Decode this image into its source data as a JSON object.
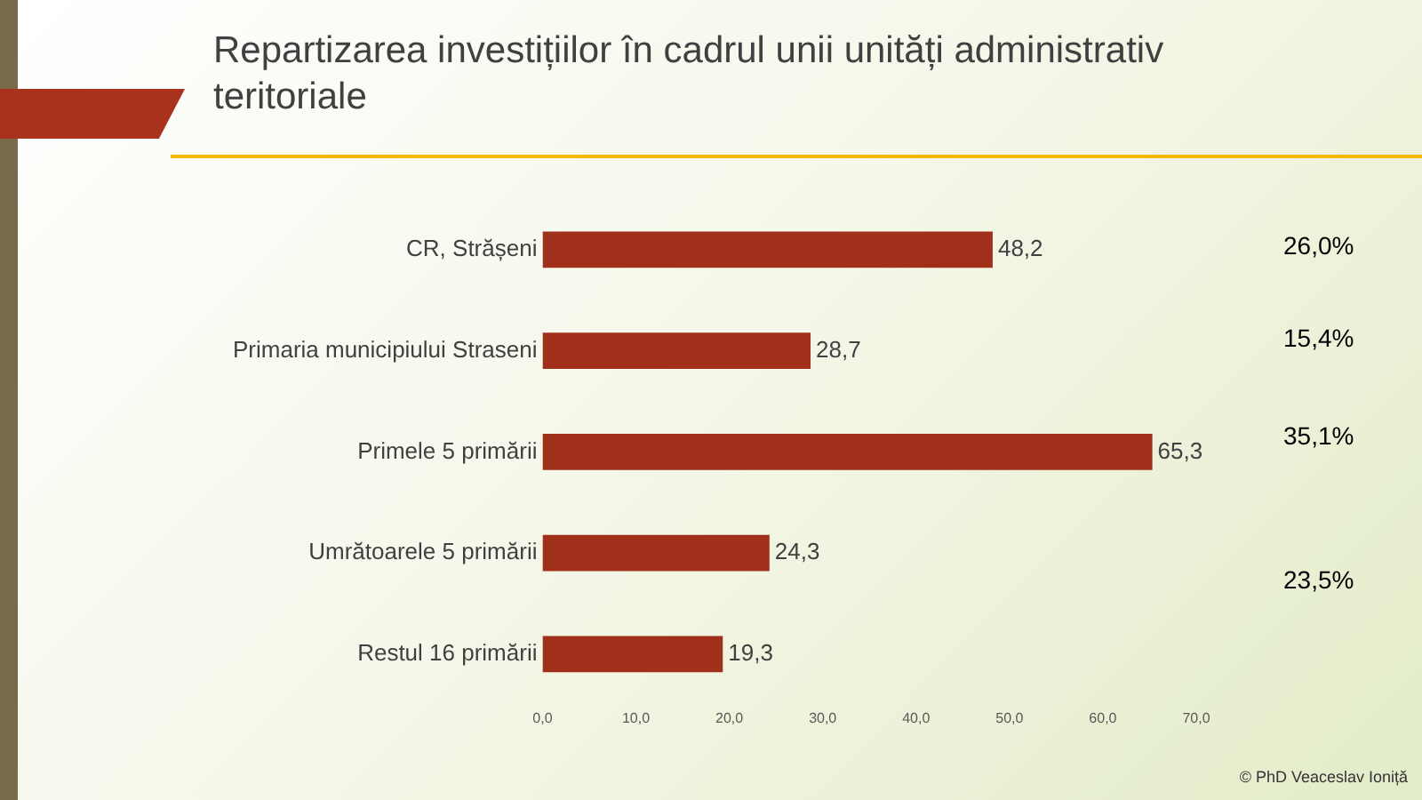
{
  "chart_data": {
    "type": "bar",
    "orientation": "horizontal",
    "title": "Repartizarea investițiilor în cadrul unii unități administrativ teritoriale",
    "categories": [
      "CR, Strășeni",
      "Primaria municipiului Straseni",
      "Primele 5 primării",
      "Umrătoarele 5 primării",
      "Restul 16 primării"
    ],
    "values": [
      48.2,
      28.7,
      65.3,
      24.3,
      19.3
    ],
    "value_labels": [
      "48,2",
      "28,7",
      "65,3",
      "24,3",
      "19,3"
    ],
    "color": "#a0301a",
    "xlim": [
      0,
      70
    ],
    "xticks": [
      {
        "value": 0,
        "label": "0,0"
      },
      {
        "value": 10,
        "label": "10,0"
      },
      {
        "value": 20,
        "label": "20,0"
      },
      {
        "value": 30,
        "label": "30,0"
      },
      {
        "value": 40,
        "label": "40,0"
      },
      {
        "value": 50,
        "label": "50,0"
      },
      {
        "value": 60,
        "label": "60,0"
      },
      {
        "value": 70,
        "label": "70,0"
      }
    ],
    "grid": false,
    "legend": false,
    "annotations": [
      "26,0%",
      "15,4%",
      "35,1%",
      "23,5%",
      "© PhD Veaceslav Ioniță"
    ]
  }
}
